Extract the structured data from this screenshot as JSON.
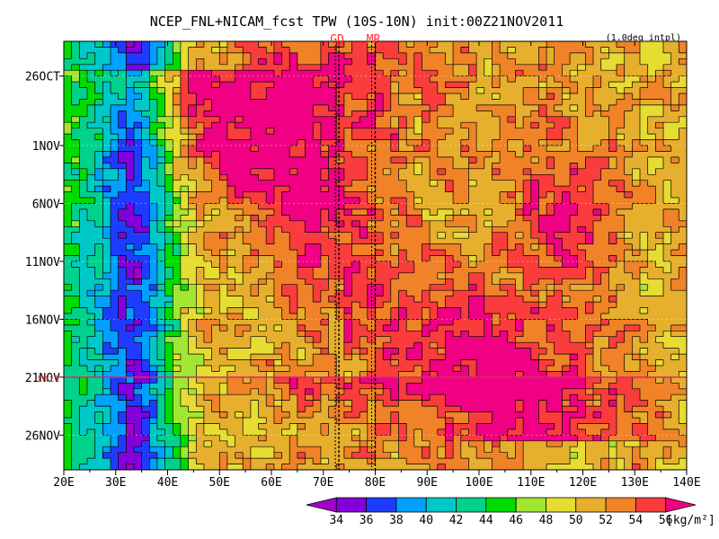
{
  "title": "NCEP_FNL+NICAM_fcst TPW (10S-10N) init:00Z21NOV2011",
  "subtitle": "(1.0deg intpl)",
  "markers": [
    {
      "label": "GD",
      "lon": 73
    },
    {
      "label": "MR",
      "lon": 80
    }
  ],
  "init_tag": "init",
  "chart_data": {
    "type": "heatmap",
    "title": "NCEP_FNL+NICAM_fcst TPW (10S-10N) init:00Z21NOV2011",
    "variable": "Total precipitable water (10S-10N average)",
    "x_axis": {
      "range_lon": [
        20,
        140
      ],
      "ticks": [
        {
          "value": 20,
          "label": "20E"
        },
        {
          "value": 30,
          "label": "30E"
        },
        {
          "value": 40,
          "label": "40E"
        },
        {
          "value": 50,
          "label": "50E"
        },
        {
          "value": 60,
          "label": "60E"
        },
        {
          "value": 70,
          "label": "70E"
        },
        {
          "value": 80,
          "label": "80E"
        },
        {
          "value": 90,
          "label": "90E"
        },
        {
          "value": 100,
          "label": "100E"
        },
        {
          "value": 110,
          "label": "110E"
        },
        {
          "value": 120,
          "label": "120E"
        },
        {
          "value": 130,
          "label": "130E"
        },
        {
          "value": 140,
          "label": "140E"
        }
      ]
    },
    "y_axis": {
      "range_days": [
        -29,
        8
      ],
      "direction": "time increases downward",
      "ticks": [
        {
          "day": -26,
          "label": "26OCT"
        },
        {
          "day": -20,
          "label": "1NOV"
        },
        {
          "day": -15,
          "label": "6NOV"
        },
        {
          "day": -10,
          "label": "11NOV"
        },
        {
          "day": -5,
          "label": "16NOV"
        },
        {
          "day": 0,
          "label": "21NOV"
        },
        {
          "day": 5,
          "label": "26NOV"
        }
      ]
    },
    "init_day": 0,
    "colorbar": {
      "unit": "[kg/m²]",
      "levels": [
        34,
        36,
        38,
        40,
        42,
        44,
        46,
        48,
        50,
        52,
        54,
        56
      ],
      "colors": [
        "#a000c8",
        "#8200dc",
        "#1e3cff",
        "#00a0ff",
        "#00c8c8",
        "#00d28c",
        "#00dc00",
        "#a0e632",
        "#e6dc32",
        "#e6af2d",
        "#f08228",
        "#fa3c3c",
        "#f00082"
      ]
    },
    "field_description": [
      {
        "feature": "dry band",
        "lon": [
          28,
          40
        ],
        "tpw": "34-38",
        "days": "all"
      },
      {
        "feature": "moist region",
        "lon": [
          60,
          80
        ],
        "tpw": "52-56",
        "days": "-29 to -20"
      },
      {
        "feature": "eastward-propagating moist envelope",
        "from_lon": 55,
        "to_lon": 110,
        "days": "-18 to 3",
        "tpw": "50-56"
      },
      {
        "feature": "moist maximum",
        "lon": [
          112,
          122
        ],
        "days": "-18 to -10",
        "tpw": ">56"
      },
      {
        "feature": "drier band",
        "lon": [
          70,
          100
        ],
        "days": "-15 to -5",
        "tpw": "44-48"
      },
      {
        "feature": "moist line at init",
        "lon": [
          55,
          112
        ],
        "days": "0 to 1",
        "tpw": ">56"
      }
    ]
  }
}
